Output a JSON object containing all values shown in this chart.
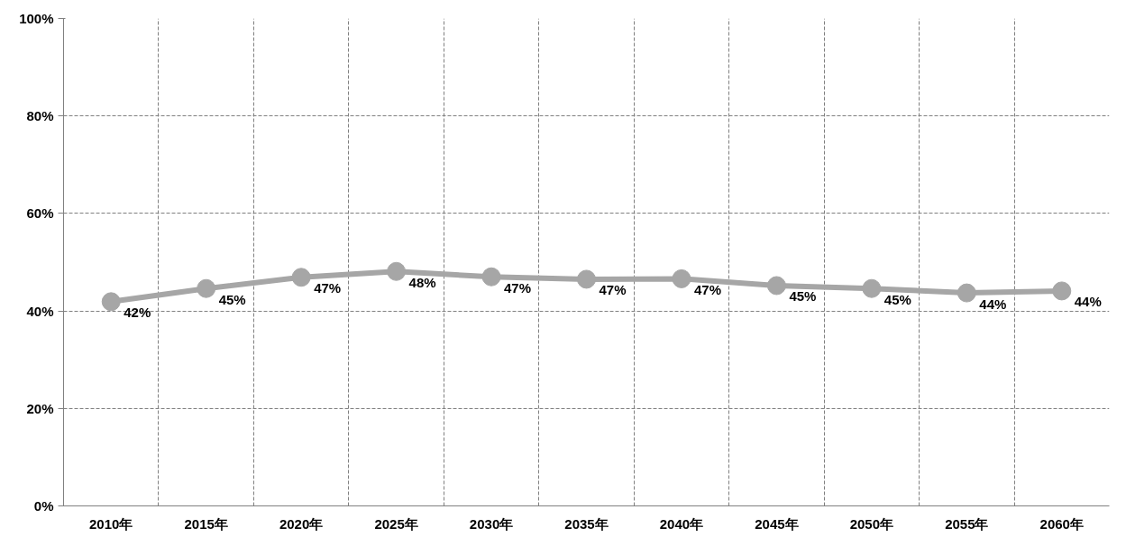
{
  "chart_data": {
    "type": "line",
    "categories": [
      "2010年",
      "2015年",
      "2020年",
      "2025年",
      "2030年",
      "2035年",
      "2040年",
      "2045年",
      "2050年",
      "2055年",
      "2060年"
    ],
    "series": [
      {
        "color": "#a6a6a6",
        "values": [
          41.9,
          44.6,
          46.9,
          48.1,
          47.0,
          46.5,
          46.6,
          45.2,
          44.6,
          43.7,
          44.1
        ],
        "value_labels": [
          "42%",
          "45%",
          "47%",
          "48%",
          "47%",
          "47%",
          "47%",
          "45%",
          "45%",
          "44%",
          "44%"
        ]
      }
    ],
    "ylim": [
      0,
      100
    ],
    "yticks": [
      {
        "value": 0,
        "label": "0%"
      },
      {
        "value": 20,
        "label": "20%"
      },
      {
        "value": 40,
        "label": "40%"
      },
      {
        "value": 60,
        "label": "60%"
      },
      {
        "value": 80,
        "label": "80%"
      },
      {
        "value": 100,
        "label": "100%"
      }
    ],
    "grid": true,
    "marker": "circle",
    "line_style": "solid"
  }
}
